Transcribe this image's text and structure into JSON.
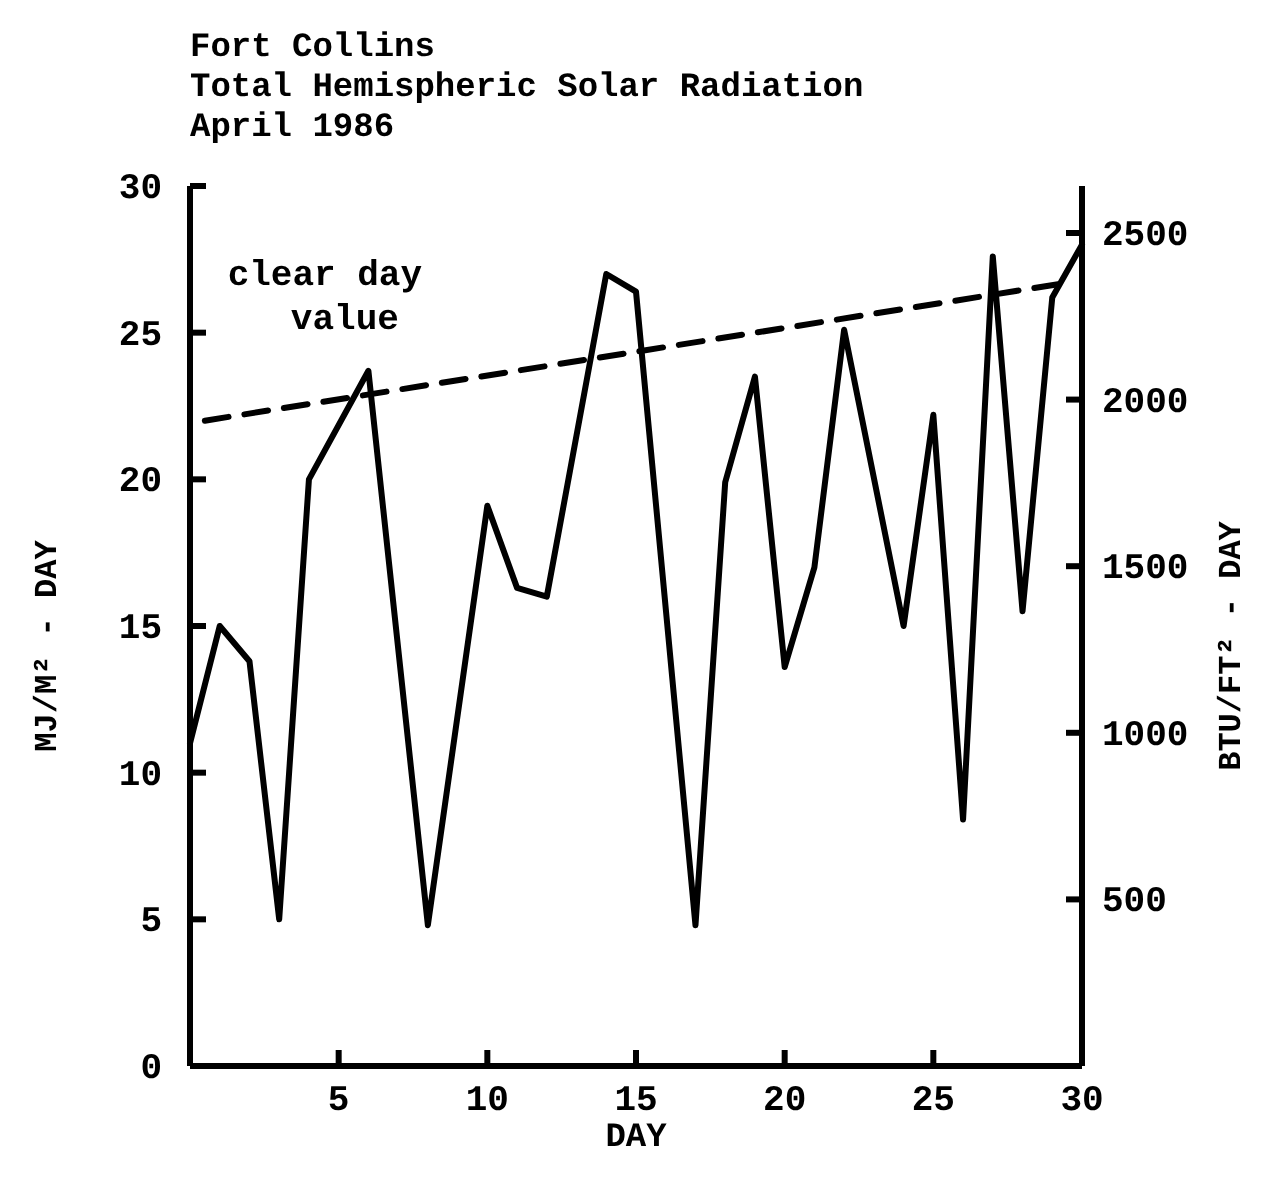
{
  "chart_data": {
    "type": "line",
    "title": "Fort Collins",
    "subtitle": "Total Hemispheric Solar Radiation\nApril 1986",
    "xlabel": "DAY",
    "ylabel": "MJ/M² - DAY",
    "y2label": "BTU/FT² - DAY",
    "xlim": [
      0,
      30
    ],
    "xticks": [
      5,
      10,
      15,
      20,
      25,
      30
    ],
    "ylim": [
      0,
      30
    ],
    "yticks": [
      0,
      5,
      10,
      15,
      20,
      25,
      30
    ],
    "y2lim": [
      0,
      2641
    ],
    "y2ticks": [
      500,
      1000,
      1500,
      2000,
      2500
    ],
    "grid": false,
    "marker": "none",
    "series": [
      {
        "color": "#000000",
        "line_style": "solid",
        "x": [
          0,
          1,
          2,
          3,
          4,
          6,
          8,
          10,
          11,
          12,
          14,
          15,
          17,
          18,
          19,
          20,
          21,
          22,
          24,
          25,
          26,
          27,
          28,
          29,
          30
        ],
        "values": [
          11,
          15,
          13.8,
          5,
          20,
          23.7,
          4.8,
          19.1,
          16.3,
          16,
          27,
          26.4,
          4.8,
          19.9,
          23.5,
          13.6,
          17,
          25.1,
          15,
          22.2,
          8.4,
          27.6,
          15.5,
          26.2,
          28
        ]
      },
      {
        "name": "clear day value",
        "color": "#000000",
        "line_style": "dashed",
        "x": [
          0.5,
          29.5
        ],
        "values": [
          22,
          26.7
        ]
      }
    ]
  }
}
